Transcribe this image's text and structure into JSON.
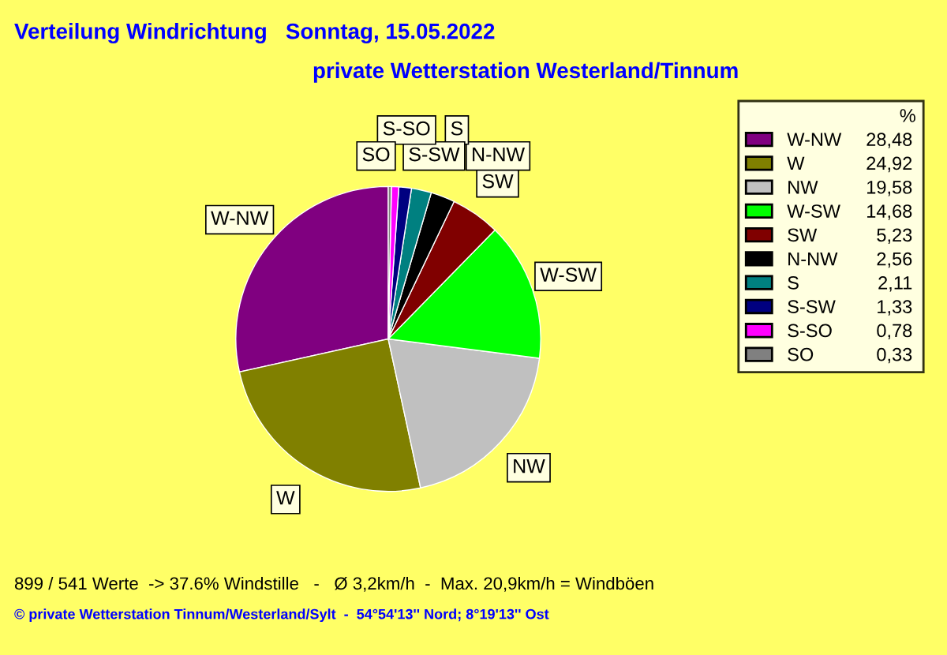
{
  "chart_data": {
    "type": "pie",
    "title": "Verteilung Windrichtung   Sonntag, 15.05.2022",
    "subtitle": "private Wetterstation Westerland/Tinnum",
    "categories": [
      "W-NW",
      "W",
      "NW",
      "W-SW",
      "SW",
      "N-NW",
      "S",
      "S-SW",
      "S-SO",
      "SO"
    ],
    "values": [
      28.48,
      24.92,
      19.58,
      14.68,
      5.23,
      2.56,
      2.11,
      1.33,
      0.78,
      0.33
    ],
    "value_labels": [
      "28,48",
      "24,92",
      "19,58",
      "14,68",
      "5,23",
      "2,56",
      "2,11",
      "1,33",
      "0,78",
      "0,33"
    ],
    "colors": [
      "#800080",
      "#808000",
      "#c0c0c0",
      "#00ff00",
      "#800000",
      "#000000",
      "#008080",
      "#000080",
      "#ff00ff",
      "#808080"
    ],
    "legend": "right",
    "legend_title": "%",
    "annotations": [
      "899 / 541 Werte  -> 37.6% Windstille   -   Ø 3,2km/h  -  Max. 20,9km/h = Windböen",
      "© private Wetterstation Tinnum/Westerland/Sylt  -  54°54'13'' Nord; 8°19'13'' Ost"
    ]
  }
}
